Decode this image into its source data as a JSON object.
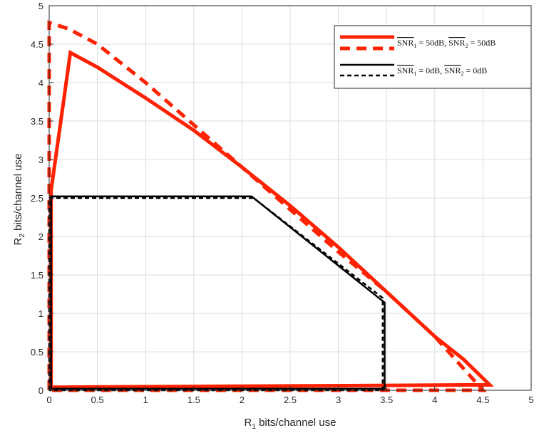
{
  "chart_data": {
    "type": "line",
    "xlabel": {
      "main": "R",
      "sub": "1",
      "rest": " bits/channel use"
    },
    "ylabel": {
      "main": "R",
      "sub": "2",
      "rest": " bits/channel use"
    },
    "xlim": [
      0,
      5
    ],
    "ylim": [
      0,
      5
    ],
    "xticks": [
      "0",
      "0.5",
      "1",
      "1.5",
      "2",
      "2.5",
      "3",
      "3.5",
      "4",
      "4.5",
      "5"
    ],
    "yticks": [
      "0",
      "0.5",
      "1",
      "1.5",
      "2",
      "2.5",
      "3",
      "3.5",
      "4",
      "4.5",
      "5"
    ],
    "grid": true,
    "legend_position": "top-right",
    "series": [
      {
        "name": "SNR1 = 50dB, SNR2 = 50dB (solid)",
        "legend_label": {
          "a": "SNR",
          "a_sub": "1",
          "a_val": " = 50dB, ",
          "b": "SNR",
          "b_sub": "2",
          "b_val": " = 50dB"
        },
        "color": "#ff2200",
        "style": "solid",
        "x": [
          0.02,
          0.02,
          0.22,
          0.5,
          1.0,
          1.5,
          2.0,
          2.5,
          3.0,
          3.5,
          4.0,
          4.3,
          4.57,
          0.02
        ],
        "y": [
          0.04,
          2.6,
          4.39,
          4.2,
          3.8,
          3.38,
          2.9,
          2.4,
          1.86,
          1.28,
          0.7,
          0.4,
          0.07,
          0.04
        ]
      },
      {
        "name": "SNR1 = 50dB, SNR2 = 50dB (dashed)",
        "color": "#ff2200",
        "style": "dashed",
        "x": [
          0.0,
          0.0,
          0.0,
          0.2,
          0.5,
          1.0,
          1.5,
          2.0,
          2.5,
          3.0,
          3.5,
          4.0,
          4.5,
          0.0
        ],
        "y": [
          0.0,
          4.0,
          4.78,
          4.7,
          4.5,
          4.0,
          3.45,
          2.9,
          2.35,
          1.8,
          1.28,
          0.7,
          0.0,
          0.0
        ]
      },
      {
        "name": "SNR1 = 0dB, SNR2 = 0dB (solid)",
        "legend_label": {
          "a": "SNR",
          "a_sub": "1",
          "a_val": " = 0dB, ",
          "b": "SNR",
          "b_sub": "2",
          "b_val": " = 0dB"
        },
        "color": "#000000",
        "style": "solid",
        "x": [
          0.02,
          0.02,
          2.1,
          3.48,
          3.48,
          0.02
        ],
        "y": [
          0.02,
          2.52,
          2.52,
          1.14,
          0.02,
          0.02
        ]
      },
      {
        "name": "SNR1 = 0dB, SNR2 = 0dB (dashed)",
        "color": "#000000",
        "style": "dashed",
        "x": [
          0.0,
          0.0,
          2.12,
          3.46,
          3.46,
          0.0
        ],
        "y": [
          0.0,
          2.5,
          2.5,
          1.2,
          0.0,
          0.0
        ]
      }
    ]
  }
}
